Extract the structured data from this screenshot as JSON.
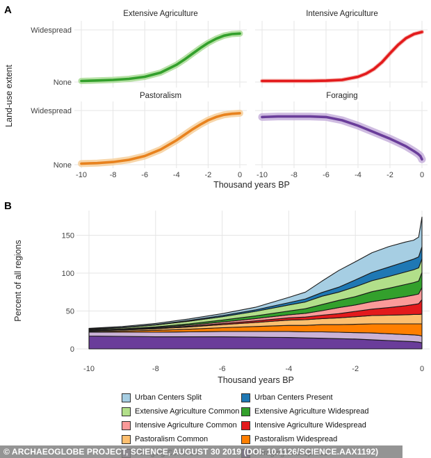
{
  "panel_a": {
    "label": "A"
  },
  "panel_b": {
    "label": "B"
  },
  "chart_data": [
    {
      "panel": "A",
      "type": "line",
      "description": "Faceted land-use extent trend curves with confidence bands",
      "x_axis_label": "Thousand years BP",
      "y_axis_label": "Land-use extent",
      "y_tick_labels": [
        "Widespread",
        "None"
      ],
      "y_units": "fraction of Widespread (0 = None, 1 = Widespread)",
      "x_ticks": [
        -10,
        -8,
        -6,
        -4,
        -2,
        0
      ],
      "series": [
        {
          "name": "Extensive Agriculture",
          "color": "#33a02c",
          "band_color": "#aadc96",
          "x": [
            -10,
            -9,
            -8,
            -7,
            -6,
            -5,
            -4,
            -3.5,
            -3,
            -2.5,
            -2,
            -1.5,
            -1,
            -0.5,
            0
          ],
          "y": [
            0.02,
            0.03,
            0.04,
            0.06,
            0.1,
            0.18,
            0.33,
            0.43,
            0.54,
            0.65,
            0.75,
            0.83,
            0.89,
            0.92,
            0.93
          ]
        },
        {
          "name": "Intensive Agriculture",
          "color": "#e31a1c",
          "band_color": "#f3aba4",
          "x": [
            -10,
            -9,
            -8,
            -7,
            -6,
            -5,
            -4,
            -3.5,
            -3,
            -2.5,
            -2,
            -1.5,
            -1,
            -0.5,
            0
          ],
          "y": [
            0.02,
            0.02,
            0.02,
            0.02,
            0.025,
            0.04,
            0.1,
            0.16,
            0.25,
            0.38,
            0.55,
            0.71,
            0.84,
            0.92,
            0.96
          ]
        },
        {
          "name": "Pastoralism",
          "color": "#e8821e",
          "band_color": "#f6cf9b",
          "x": [
            -10,
            -9,
            -8,
            -7,
            -6,
            -5,
            -4,
            -3.5,
            -3,
            -2.5,
            -2,
            -1.5,
            -1,
            -0.5,
            0
          ],
          "y": [
            0.02,
            0.03,
            0.05,
            0.09,
            0.16,
            0.28,
            0.45,
            0.55,
            0.65,
            0.74,
            0.82,
            0.88,
            0.92,
            0.94,
            0.95
          ]
        },
        {
          "name": "Foraging",
          "color": "#6a3d9a",
          "band_color": "#c7b0dc",
          "x": [
            -10,
            -9,
            -8,
            -7,
            -6,
            -5,
            -4,
            -3.5,
            -3,
            -2.5,
            -2,
            -1.5,
            -1,
            -0.5,
            -0.25,
            -0.1,
            0
          ],
          "y": [
            0.88,
            0.89,
            0.89,
            0.89,
            0.88,
            0.82,
            0.72,
            0.66,
            0.6,
            0.54,
            0.48,
            0.41,
            0.34,
            0.25,
            0.2,
            0.16,
            0.1
          ]
        }
      ]
    },
    {
      "panel": "B",
      "type": "area",
      "stacked": true,
      "x_axis_label": "Thousand years BP",
      "y_axis_label": "Percent of all regions",
      "x_ticks": [
        -10,
        -8,
        -6,
        -4,
        -2,
        0
      ],
      "y_ticks": [
        0,
        50,
        100,
        150
      ],
      "ylim": [
        0,
        175
      ],
      "x": [
        -10,
        -9,
        -8,
        -7,
        -6,
        -5,
        -4,
        -3.5,
        -3,
        -2.5,
        -2,
        -1.5,
        -1,
        -0.5,
        -0.25,
        -0.1,
        0
      ],
      "series": [
        {
          "name": "Foraging Widespread",
          "color": "#6a3d9a",
          "values": [
            17,
            16.5,
            16,
            16,
            16,
            15.5,
            15,
            14.5,
            14,
            13.5,
            13,
            12,
            11,
            10,
            9.5,
            9,
            8
          ]
        },
        {
          "name": "Foraging Common",
          "color": "#cab2d6",
          "values": [
            5,
            5.5,
            6,
            6.5,
            7,
            7.5,
            8,
            8,
            8.5,
            8.5,
            8.5,
            9,
            9,
            9,
            9,
            9,
            9
          ]
        },
        {
          "name": "Pastoralism Widespread",
          "color": "#ff7f00",
          "values": [
            1,
            1.5,
            2.5,
            3.5,
            5,
            6.5,
            8,
            8.5,
            9.5,
            10,
            11,
            12,
            13,
            14,
            14.5,
            15,
            16
          ]
        },
        {
          "name": "Pastoralism Common",
          "color": "#fdbf6f",
          "values": [
            1,
            1.5,
            2,
            3,
            4,
            5.5,
            7,
            7.5,
            8,
            9,
            10,
            11,
            11.5,
            12,
            12.5,
            12.5,
            13
          ]
        },
        {
          "name": "Intensive Agriculture Widespread",
          "color": "#e31a1c",
          "values": [
            0.3,
            0.4,
            0.6,
            1,
            1.5,
            2,
            3,
            3.5,
            4.5,
            5.5,
            7,
            8.5,
            10,
            12,
            13,
            14,
            19
          ]
        },
        {
          "name": "Intensive Agriculture Common",
          "color": "#fb9a99",
          "values": [
            0.3,
            0.5,
            1,
            1.5,
            2,
            3,
            4,
            5,
            6,
            8,
            8.5,
            10,
            11,
            12,
            12.5,
            13,
            16
          ]
        },
        {
          "name": "Extensive Agriculture Widespread",
          "color": "#33a02c",
          "values": [
            0.3,
            0.5,
            1,
            1.5,
            2.5,
            3.5,
            5,
            6,
            8,
            9.5,
            11,
            13,
            14.5,
            16,
            16.5,
            17,
            20
          ]
        },
        {
          "name": "Extensive Agriculture Common",
          "color": "#b2df8a",
          "values": [
            1,
            1.5,
            2.5,
            3.5,
            4.5,
            6,
            8,
            9,
            11,
            11,
            13,
            14.5,
            15.5,
            16.5,
            17,
            17.5,
            18
          ]
        },
        {
          "name": "Urban Centers Present",
          "color": "#1f78b4",
          "values": [
            0.3,
            0.4,
            0.5,
            1,
            1.5,
            2,
            3,
            4,
            5,
            6.5,
            9,
            11,
            12.5,
            13.5,
            14,
            14.5,
            16
          ]
        },
        {
          "name": "Urban Centers Split",
          "color": "#a6cee3",
          "values": [
            1,
            1.2,
            1.5,
            2,
            2.5,
            3.5,
            7,
            9,
            15,
            22,
            24,
            26,
            27,
            26,
            25,
            26,
            39
          ]
        }
      ]
    }
  ],
  "legend": {
    "items": [
      {
        "label": "Urban Centers Split",
        "color": "#a6cee3"
      },
      {
        "label": "Urban Centers Present",
        "color": "#1f78b4"
      },
      {
        "label": "Extensive Agriculture Common",
        "color": "#b2df8a"
      },
      {
        "label": "Extensive Agriculture Widespread",
        "color": "#33a02c"
      },
      {
        "label": "Intensive Agriculture Common",
        "color": "#fb9a99"
      },
      {
        "label": "Intensive Agriculture Widespread",
        "color": "#e31a1c"
      },
      {
        "label": "Pastoralism Common",
        "color": "#fdbf6f"
      },
      {
        "label": "Pastoralism Widespread",
        "color": "#ff7f00"
      },
      {
        "label": "Foraging Common",
        "color": "#cab2d6"
      },
      {
        "label": "Foraging Widespread",
        "color": "#6a3d9a"
      }
    ]
  },
  "watermark": {
    "text": "© ARCHAEOGLOBE PROJECT, SCIENCE, AUGUST 30 2019 (DOI: 10.1126/SCIENCE.AAX1192)"
  },
  "style": {
    "grid_color": "#e5e5e5",
    "tick_text_color": "#404040",
    "title_text_color": "#262626",
    "layer_outline_color": "#1a1a1a"
  }
}
